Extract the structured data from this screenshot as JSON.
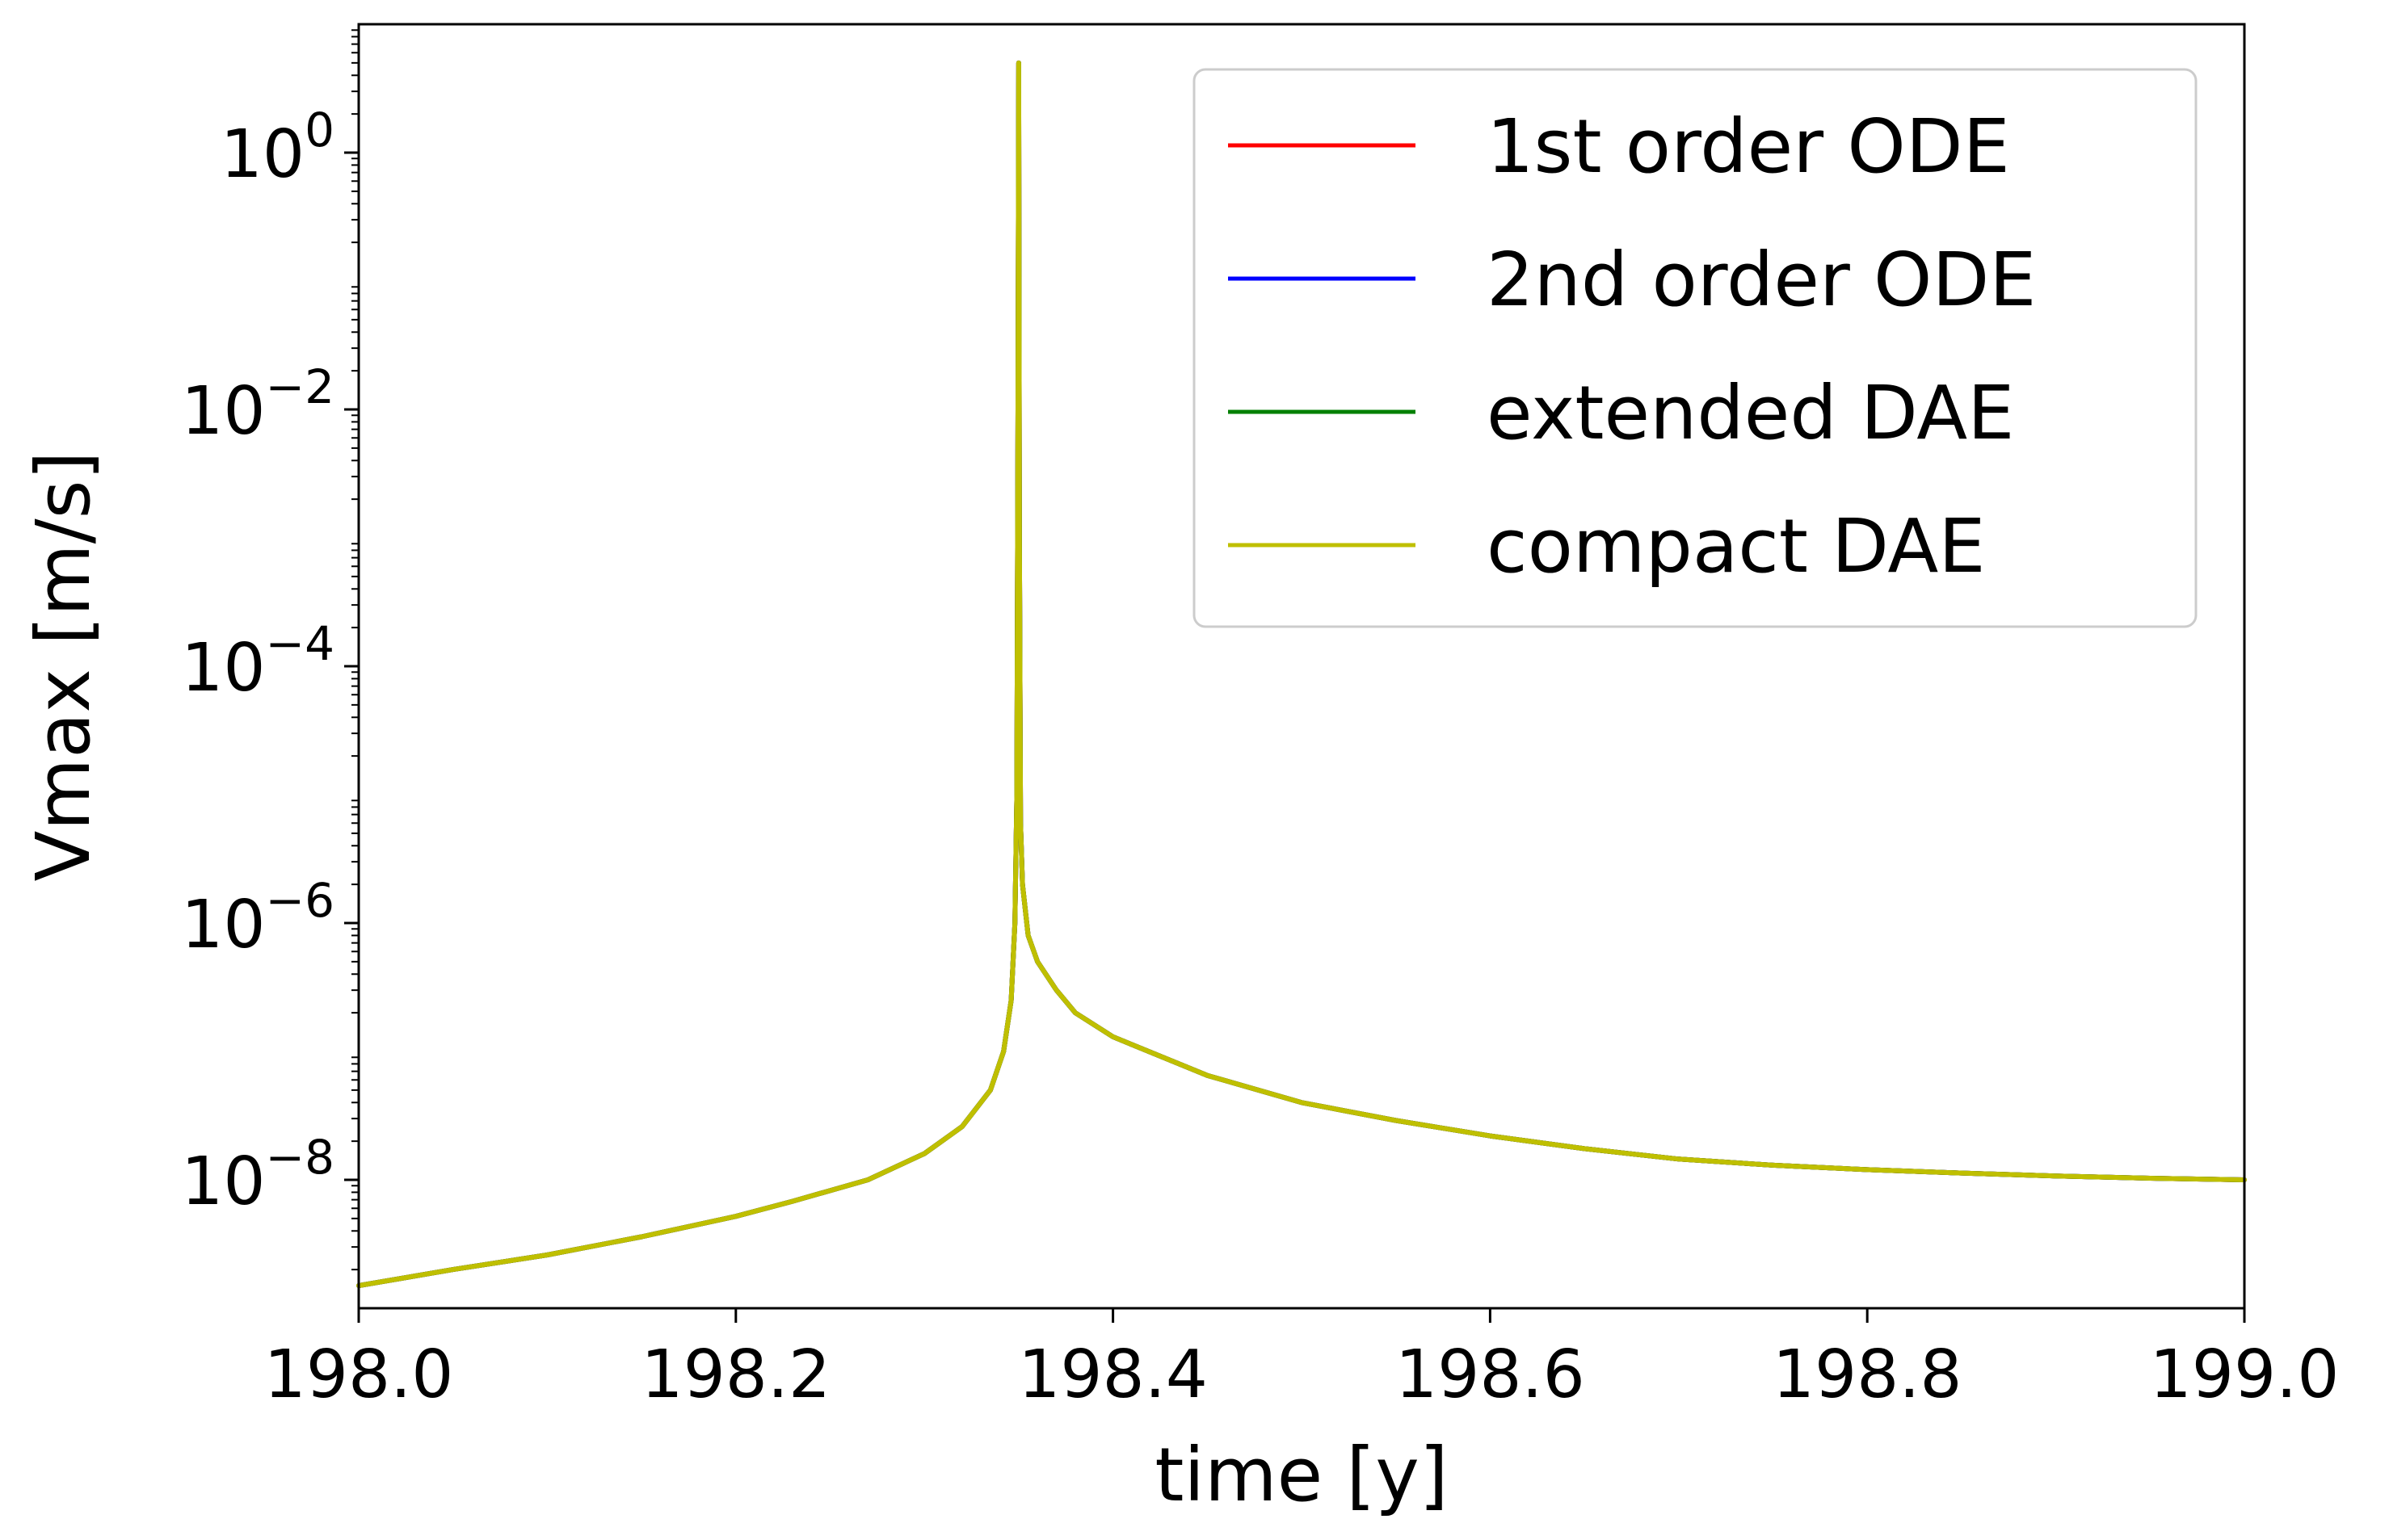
{
  "chart_data": {
    "type": "line",
    "xlabel": "time [y]",
    "ylabel": "Vmax [m/s]",
    "yscale": "log",
    "xlim": [
      198.0,
      199.0
    ],
    "ylim": [
      1e-09,
      10.0
    ],
    "x_ticks": [
      198.0,
      198.2,
      198.4,
      198.6,
      198.8,
      199.0
    ],
    "x_tick_labels": [
      "198.0",
      "198.2",
      "198.4",
      "198.6",
      "198.8",
      "199.0"
    ],
    "y_ticks": [
      1e-08,
      1e-06,
      0.0001,
      0.01,
      1
    ],
    "y_tick_labels": [
      {
        "base": "10",
        "exp": "−8"
      },
      {
        "base": "10",
        "exp": "−6"
      },
      {
        "base": "10",
        "exp": "−4"
      },
      {
        "base": "10",
        "exp": "−2"
      },
      {
        "base": "10",
        "exp": "0"
      }
    ],
    "grid": false,
    "legend_position": "top-right",
    "x": [
      198.0,
      198.05,
      198.1,
      198.15,
      198.2,
      198.23,
      198.27,
      198.3,
      198.32,
      198.335,
      198.342,
      198.346,
      198.348,
      198.349,
      198.3496,
      198.35,
      198.3504,
      198.351,
      198.352,
      198.355,
      198.36,
      198.37,
      198.38,
      198.4,
      198.45,
      198.5,
      198.55,
      198.6,
      198.65,
      198.7,
      198.75,
      198.8,
      198.85,
      198.9,
      198.95,
      199.0
    ],
    "series": [
      {
        "name": "1st order ODE",
        "color": "#ff0000",
        "values": [
          1.5e-09,
          2e-09,
          2.6e-09,
          3.6e-09,
          5.2e-09,
          6.8e-09,
          1e-08,
          1.6e-08,
          2.6e-08,
          5e-08,
          1e-07,
          2.5e-07,
          1e-06,
          1e-05,
          0.01,
          5.0,
          0.001,
          6e-06,
          2e-06,
          8e-07,
          5e-07,
          3e-07,
          2e-07,
          1.3e-07,
          6.5e-08,
          4e-08,
          2.9e-08,
          2.2e-08,
          1.75e-08,
          1.45e-08,
          1.3e-08,
          1.2e-08,
          1.13e-08,
          1.07e-08,
          1.03e-08,
          1e-08
        ]
      },
      {
        "name": "2nd order ODE",
        "color": "#0000ff",
        "values": [
          1.5e-09,
          2e-09,
          2.6e-09,
          3.6e-09,
          5.2e-09,
          6.8e-09,
          1e-08,
          1.6e-08,
          2.6e-08,
          5e-08,
          1e-07,
          2.5e-07,
          1e-06,
          1e-05,
          0.01,
          5.0,
          0.001,
          6e-06,
          2e-06,
          8e-07,
          5e-07,
          3e-07,
          2e-07,
          1.3e-07,
          6.5e-08,
          4e-08,
          2.9e-08,
          2.2e-08,
          1.75e-08,
          1.45e-08,
          1.3e-08,
          1.2e-08,
          1.13e-08,
          1.07e-08,
          1.03e-08,
          1e-08
        ]
      },
      {
        "name": "extended DAE",
        "color": "#008000",
        "values": [
          1.5e-09,
          2e-09,
          2.6e-09,
          3.6e-09,
          5.2e-09,
          6.8e-09,
          1e-08,
          1.6e-08,
          2.6e-08,
          5e-08,
          1e-07,
          2.5e-07,
          1e-06,
          1e-05,
          0.01,
          5.0,
          0.001,
          6e-06,
          2e-06,
          8e-07,
          5e-07,
          3e-07,
          2e-07,
          1.3e-07,
          6.5e-08,
          4e-08,
          2.9e-08,
          2.2e-08,
          1.75e-08,
          1.45e-08,
          1.3e-08,
          1.2e-08,
          1.13e-08,
          1.07e-08,
          1.03e-08,
          1e-08
        ]
      },
      {
        "name": "compact DAE",
        "color": "#bfbf00",
        "values": [
          1.5e-09,
          2e-09,
          2.6e-09,
          3.6e-09,
          5.2e-09,
          6.8e-09,
          1e-08,
          1.6e-08,
          2.6e-08,
          5e-08,
          1e-07,
          2.5e-07,
          1e-06,
          1e-05,
          0.01,
          5.0,
          0.001,
          6e-06,
          2e-06,
          8e-07,
          5e-07,
          3e-07,
          2e-07,
          1.3e-07,
          6.5e-08,
          4e-08,
          2.9e-08,
          2.2e-08,
          1.75e-08,
          1.45e-08,
          1.3e-08,
          1.2e-08,
          1.13e-08,
          1.07e-08,
          1.03e-08,
          1e-08
        ]
      }
    ]
  }
}
